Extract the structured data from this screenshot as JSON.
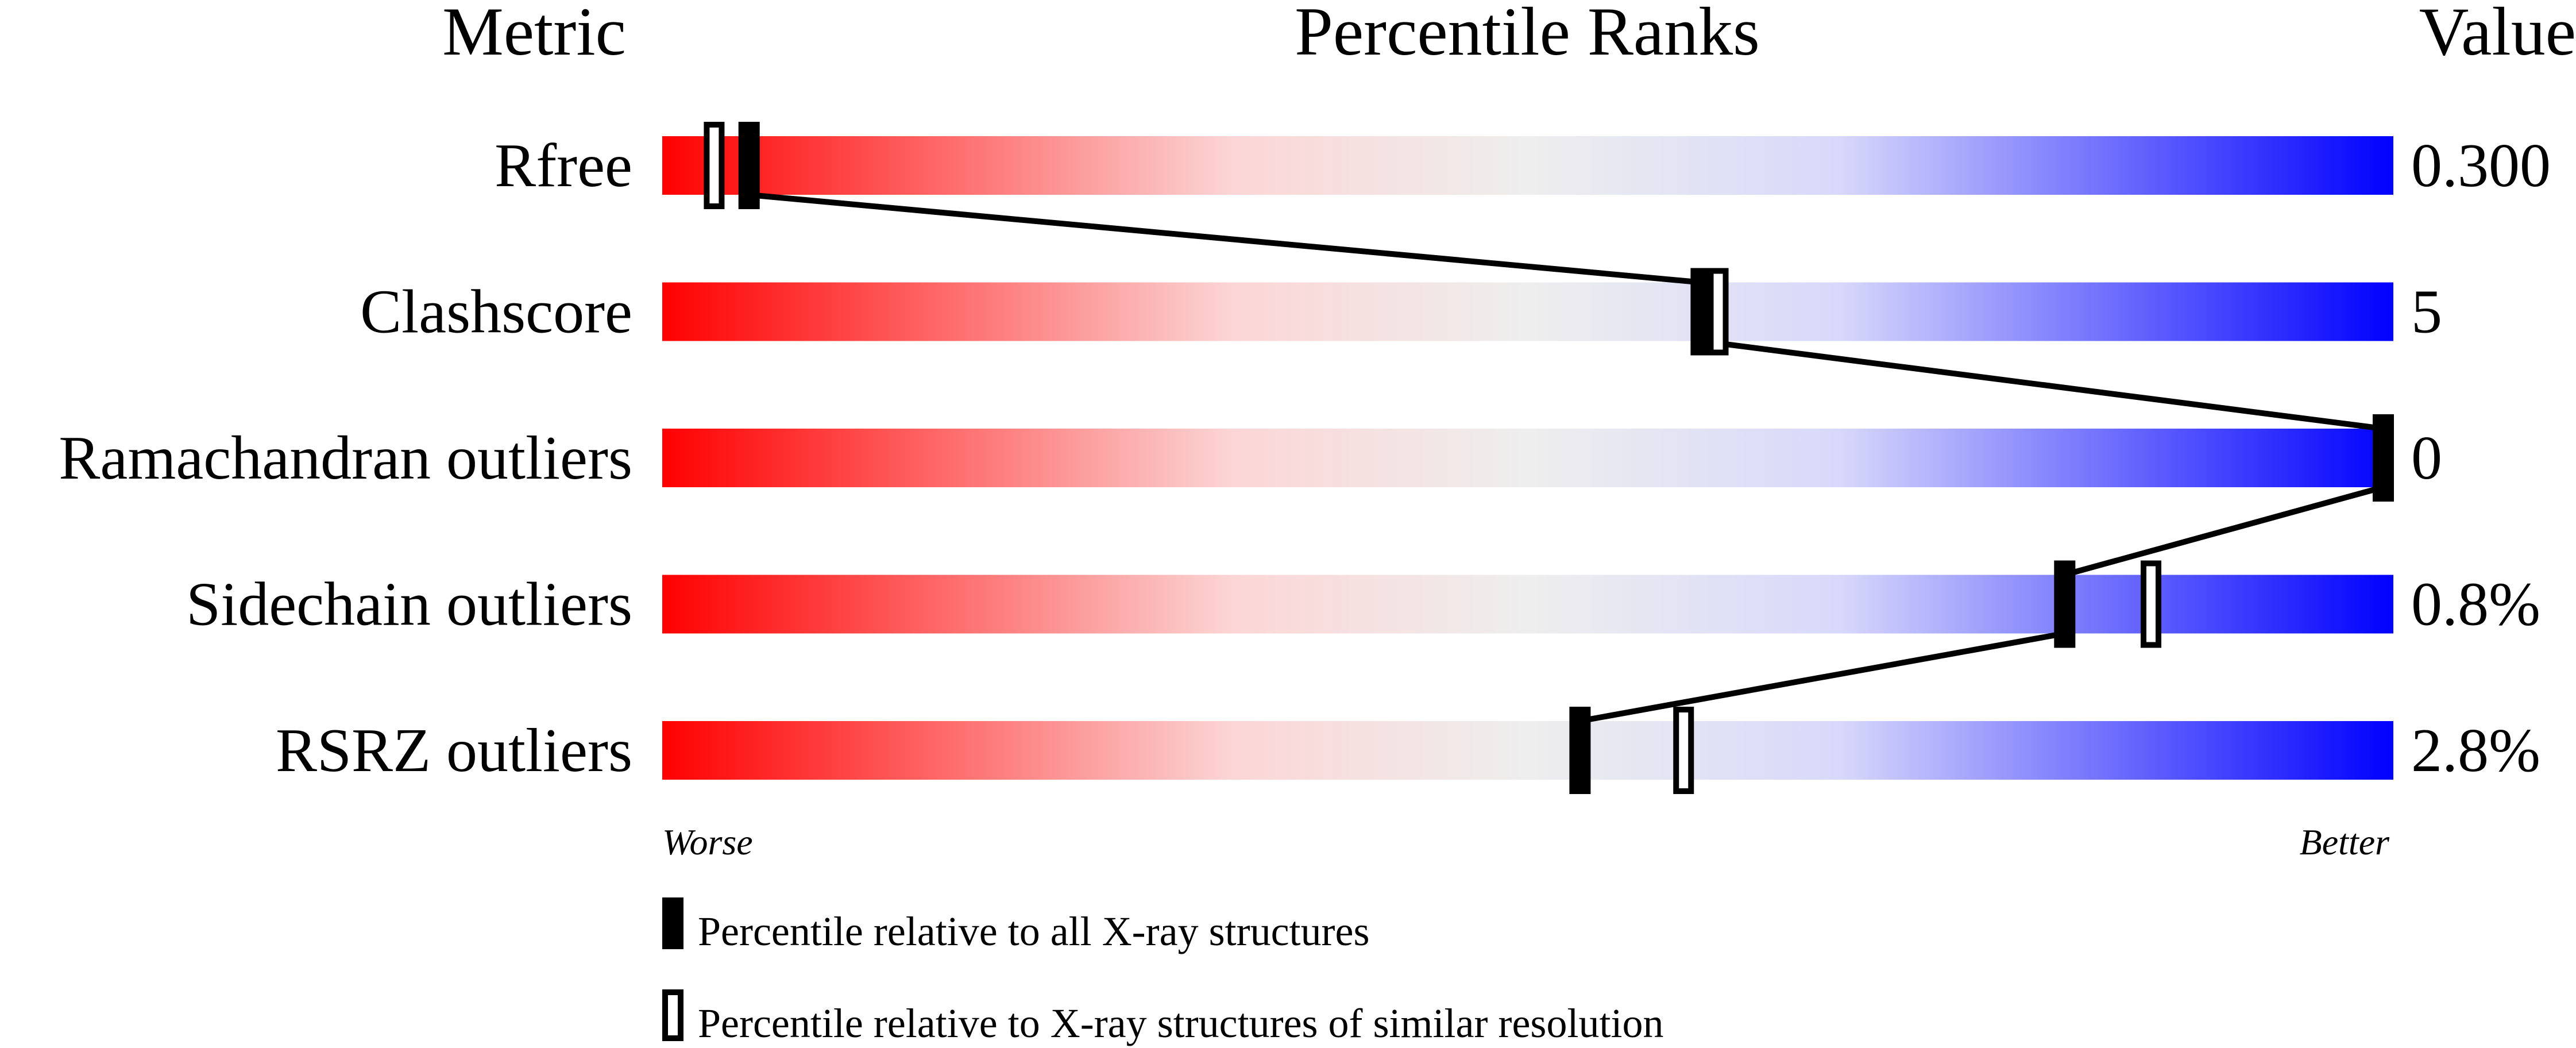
{
  "chart_data": {
    "type": "percentile-slider",
    "headers": {
      "metric": "Metric",
      "ranks": "Percentile Ranks",
      "value": "Value"
    },
    "xlim": [
      0,
      100
    ],
    "axis_labels": {
      "left": "Worse",
      "right": "Better"
    },
    "rows": [
      {
        "metric": "Rfree",
        "value": "0.300",
        "percentile_all": 5,
        "percentile_similar": 3
      },
      {
        "metric": "Clashscore",
        "value": "5",
        "percentile_all": 60,
        "percentile_similar": 61
      },
      {
        "metric": "Ramachandran outliers",
        "value": "0",
        "percentile_all": 100,
        "percentile_similar": 100
      },
      {
        "metric": "Sidechain outliers",
        "value": "0.8%",
        "percentile_all": 81,
        "percentile_similar": 86
      },
      {
        "metric": "RSRZ outliers",
        "value": "2.8%",
        "percentile_all": 53,
        "percentile_similar": 59
      }
    ],
    "legend": [
      {
        "marker": "filled",
        "label": "Percentile relative to all X-ray structures"
      },
      {
        "marker": "open",
        "label": "Percentile relative to X-ray structures of similar resolution"
      }
    ],
    "gradient_colors": [
      "#ff0000",
      "#fcd6d6",
      "#eeeeee",
      "#d8d8fb",
      "#0000ff"
    ]
  }
}
